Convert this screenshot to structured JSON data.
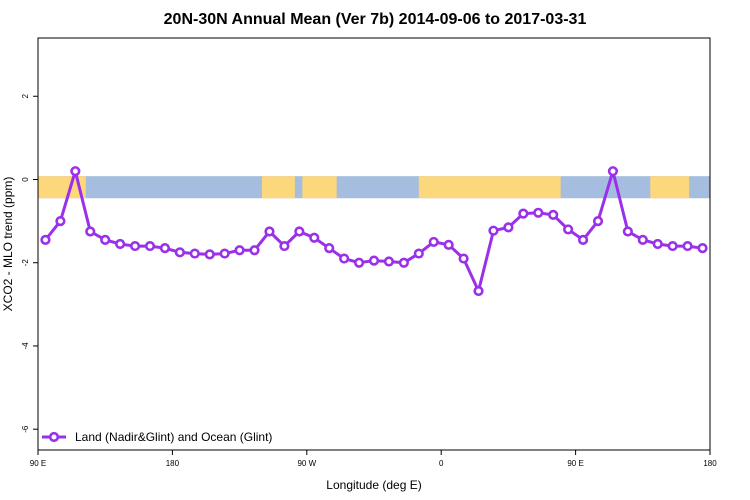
{
  "chart_data": {
    "type": "line",
    "title": "20N-30N Annual Mean (Ver 7b)   2014-09-06 to 2017-03-31",
    "xlabel": "Longitude (deg E)",
    "ylabel": "XCO2 - MLO trend (ppm)",
    "xlim": [
      90,
      540
    ],
    "ylim": [
      -6.5,
      3.4
    ],
    "x_ticks": [
      {
        "value": 90,
        "label": "90 E"
      },
      {
        "value": 180,
        "label": "180"
      },
      {
        "value": 270,
        "label": "90 W"
      },
      {
        "value": 360,
        "label": "0"
      },
      {
        "value": 450,
        "label": "90 E"
      },
      {
        "value": 540,
        "label": "180"
      }
    ],
    "y_ticks": [
      {
        "value": 2,
        "label": "2"
      },
      {
        "value": 0,
        "label": "0"
      },
      {
        "value": -2,
        "label": "-2"
      },
      {
        "value": -4,
        "label": "-4"
      },
      {
        "value": -6,
        "label": "-6"
      }
    ],
    "background_band": {
      "y_range": [
        -0.45,
        0.08
      ],
      "ocean_color": "#a5bddf",
      "land_color": "#fcd77b"
    },
    "land_segments_lon": [
      [
        90,
        122
      ],
      [
        240,
        262
      ],
      [
        267,
        290
      ],
      [
        345,
        440
      ],
      [
        500,
        526
      ]
    ],
    "legend": {
      "position": "bottom-left",
      "entries": [
        "Land (Nadir&Glint) and Ocean (Glint)"
      ]
    },
    "series": [
      {
        "name": "Land (Nadir&Glint) and Ocean (Glint)",
        "color": "#9b30ea",
        "x": [
          95,
          105,
          115,
          125,
          135,
          145,
          155,
          165,
          175,
          185,
          195,
          205,
          215,
          225,
          235,
          245,
          255,
          265,
          275,
          285,
          295,
          305,
          315,
          325,
          335,
          345,
          355,
          365,
          375,
          385,
          395,
          405,
          415,
          425,
          435,
          445,
          455,
          465,
          475,
          485,
          495,
          505,
          515,
          525,
          535
        ],
        "values": [
          -1.45,
          -1.0,
          0.2,
          -1.25,
          -1.45,
          -1.55,
          -1.6,
          -1.6,
          -1.65,
          -1.75,
          -1.78,
          -1.8,
          -1.78,
          -1.7,
          -1.7,
          -1.25,
          -1.6,
          -1.25,
          -1.4,
          -1.65,
          -1.9,
          -2.0,
          -1.95,
          -1.97,
          -2.0,
          -1.78,
          -1.5,
          -1.57,
          -1.9,
          -2.68,
          -1.23,
          -1.15,
          -0.82,
          -0.8,
          -0.85,
          -1.2,
          -1.45,
          -1.0,
          0.2,
          -1.25,
          -1.45,
          -1.55,
          -1.6,
          -1.6,
          -1.65
        ]
      }
    ]
  }
}
